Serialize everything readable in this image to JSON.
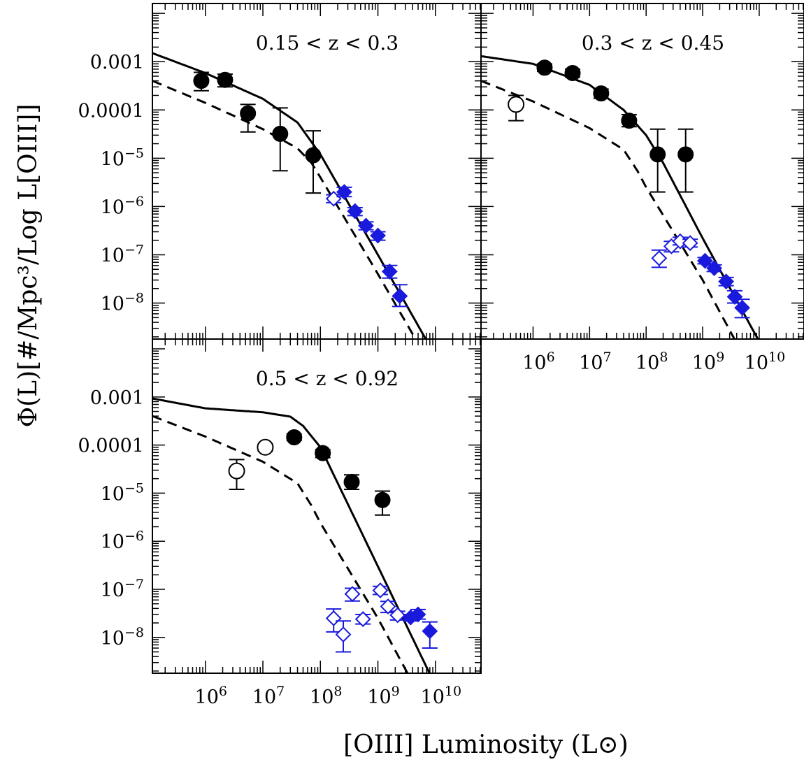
{
  "chart_data": {
    "type": "scatter",
    "xlabel": "[OIII] Luminosity (L⊙)",
    "ylabel": "Φ(L)[#/Mpc³/Log L[OIII]]",
    "xscale": "log",
    "yscale": "log",
    "xlim": [
      120000.0,
      62000000000.0
    ],
    "ylim": [
      1.8e-09,
      0.016
    ],
    "x_ticks": [
      {
        "value": 1000000.0,
        "label": "10",
        "exp": "6"
      },
      {
        "value": 10000000.0,
        "label": "10",
        "exp": "7"
      },
      {
        "value": 100000000.0,
        "label": "10",
        "exp": "8"
      },
      {
        "value": 1000000000.0,
        "label": "10",
        "exp": "9"
      },
      {
        "value": 10000000000.0,
        "label": "10",
        "exp": "10"
      }
    ],
    "y_ticks": [
      {
        "value": 0.001,
        "label": "0.001",
        "exp": ""
      },
      {
        "value": 0.0001,
        "label": "0.0001",
        "exp": ""
      },
      {
        "value": 1e-05,
        "label": "10",
        "exp": "−5"
      },
      {
        "value": 1e-06,
        "label": "10",
        "exp": "−6"
      },
      {
        "value": 1e-07,
        "label": "10",
        "exp": "−7"
      },
      {
        "value": 1e-08,
        "label": "10",
        "exp": "−8"
      }
    ],
    "colors": {
      "black": "#000000",
      "blue": "#1a1adc"
    },
    "panels": [
      {
        "title": "0.15 < z < 0.3",
        "position": "top-left",
        "show_y_ticks": true,
        "show_x_ticks": false,
        "black_filled": [
          {
            "x": 850000.0,
            "y": 0.0004,
            "ylo": 0.00025,
            "yhi": 0.0006
          },
          {
            "x": 2200000.0,
            "y": 0.00042,
            "ylo": 0.0003,
            "yhi": 0.00055
          },
          {
            "x": 5500000.0,
            "y": 8.5e-05,
            "ylo": 3.5e-05,
            "yhi": 0.00013
          },
          {
            "x": 20000000.0,
            "y": 3.2e-05,
            "ylo": 5.5e-06,
            "yhi": 0.00011
          },
          {
            "x": 75000000.0,
            "y": 1.15e-05,
            "ylo": 1.9e-06,
            "yhi": 3.7e-05
          }
        ],
        "black_open": [],
        "blue_filled": [
          {
            "x": 260000000.0,
            "y": 2e-06,
            "ylo": 1.6e-06,
            "yhi": 2.5e-06
          },
          {
            "x": 400000000.0,
            "y": 8e-07,
            "ylo": 6.5e-07,
            "yhi": 9.5e-07
          },
          {
            "x": 620000000.0,
            "y": 4e-07,
            "ylo": 3.3e-07,
            "yhi": 4.8e-07
          },
          {
            "x": 1000000000.0,
            "y": 2.5e-07,
            "ylo": 2e-07,
            "yhi": 3e-07
          },
          {
            "x": 1600000000.0,
            "y": 4.5e-08,
            "ylo": 3.3e-08,
            "yhi": 6e-08
          },
          {
            "x": 2400000000.0,
            "y": 1.4e-08,
            "ylo": 8.5e-09,
            "yhi": 2.4e-08
          }
        ],
        "blue_open": [
          {
            "x": 170000000.0,
            "y": 1.45e-06,
            "ylo": 1.2e-06,
            "yhi": 1.75e-06
          }
        ],
        "solid_curve": [
          [
            120000.0,
            0.0015
          ],
          [
            1000000.0,
            0.00058
          ],
          [
            10000000.0,
            0.00017
          ],
          [
            40000000.0,
            5.5e-05
          ],
          [
            60000000.0,
            2.8e-05
          ],
          [
            100000000.0,
            1.2e-05
          ],
          [
            1000000000.0,
            1e-07
          ],
          [
            10000000000.0,
            8e-10
          ]
        ],
        "dashed_curve": [
          [
            120000.0,
            0.0004
          ],
          [
            1000000.0,
            0.00014
          ],
          [
            10000000.0,
            4e-05
          ],
          [
            40000000.0,
            1.6e-05
          ],
          [
            70000000.0,
            8e-06
          ],
          [
            100000000.0,
            4e-06
          ],
          [
            1000000000.0,
            4e-08
          ],
          [
            10000000000.0,
            3.5e-10
          ]
        ]
      },
      {
        "title": "0.3 < z < 0.45",
        "position": "top-right",
        "show_y_ticks": false,
        "show_x_ticks": true,
        "black_filled": [
          {
            "x": 1600000.0,
            "y": 0.00075,
            "ylo": 0.00063,
            "yhi": 0.0009
          },
          {
            "x": 5000000.0,
            "y": 0.00058,
            "ylo": 0.00048,
            "yhi": 0.0007
          },
          {
            "x": 16000000.0,
            "y": 0.00022,
            "ylo": 0.000175,
            "yhi": 0.00027
          },
          {
            "x": 50000000.0,
            "y": 6e-05,
            "ylo": 4.5e-05,
            "yhi": 8e-05
          },
          {
            "x": 160000000.0,
            "y": 1.2e-05,
            "ylo": 2e-06,
            "yhi": 4e-05
          },
          {
            "x": 500000000.0,
            "y": 1.2e-05,
            "ylo": 2e-06,
            "yhi": 4e-05
          }
        ],
        "black_open": [
          {
            "x": 500000.0,
            "y": 0.00013,
            "ylo": 6e-05,
            "yhi": 0.0002
          }
        ],
        "blue_filled": [
          {
            "x": 1100000000.0,
            "y": 7.5e-08,
            "ylo": 6.5e-08,
            "yhi": 8.8e-08
          },
          {
            "x": 1600000000.0,
            "y": 5.3e-08,
            "ylo": 4.5e-08,
            "yhi": 6.2e-08
          },
          {
            "x": 2600000000.0,
            "y": 2.8e-08,
            "ylo": 2.3e-08,
            "yhi": 3.4e-08
          },
          {
            "x": 3700000000.0,
            "y": 1.35e-08,
            "ylo": 1e-08,
            "yhi": 1.8e-08
          },
          {
            "x": 5000000000.0,
            "y": 8e-09,
            "ylo": 5e-09,
            "yhi": 1.2e-08
          }
        ],
        "blue_open": [
          {
            "x": 170000000.0,
            "y": 8.5e-08,
            "ylo": 5.5e-08,
            "yhi": 1.25e-07
          },
          {
            "x": 280000000.0,
            "y": 1.5e-07,
            "ylo": 1.15e-07,
            "yhi": 1.9e-07
          },
          {
            "x": 400000000.0,
            "y": 1.9e-07,
            "ylo": 1.6e-07,
            "yhi": 2.3e-07
          },
          {
            "x": 600000000.0,
            "y": 1.75e-07,
            "ylo": 1.45e-07,
            "yhi": 2.1e-07
          }
        ],
        "solid_curve": [
          [
            120000.0,
            0.0013
          ],
          [
            1000000.0,
            0.0009
          ],
          [
            10000000.0,
            0.00033
          ],
          [
            40000000.0,
            0.0001
          ],
          [
            100000000.0,
            3e-05
          ],
          [
            200000000.0,
            8e-06
          ],
          [
            1000000000.0,
            2.2e-07
          ],
          [
            10000000000.0,
            1.6e-09
          ]
        ],
        "dashed_curve": [
          [
            120000.0,
            0.0004
          ],
          [
            1000000.0,
            0.00015
          ],
          [
            10000000.0,
            4.2e-05
          ],
          [
            40000000.0,
            1.5e-05
          ],
          [
            70000000.0,
            5.5e-06
          ],
          [
            100000000.0,
            2.5e-06
          ],
          [
            1000000000.0,
            3e-08
          ],
          [
            10000000000.0,
            2e-10
          ]
        ]
      },
      {
        "title": "0.5 < z < 0.92",
        "position": "bottom-left",
        "show_y_ticks": true,
        "show_x_ticks": true,
        "black_filled": [
          {
            "x": 35000000.0,
            "y": 0.000145,
            "ylo": 0.000125,
            "yhi": 0.00017
          },
          {
            "x": 110000000.0,
            "y": 6.8e-05,
            "ylo": 5.5e-05,
            "yhi": 8e-05
          },
          {
            "x": 350000000.0,
            "y": 1.7e-05,
            "ylo": 1.2e-05,
            "yhi": 2.4e-05
          },
          {
            "x": 1200000000.0,
            "y": 7.2e-06,
            "ylo": 3.5e-06,
            "yhi": 1.1e-05
          }
        ],
        "black_open": [
          {
            "x": 3500000.0,
            "y": 2.9e-05,
            "ylo": 1.2e-05,
            "yhi": 5e-05
          },
          {
            "x": 11000000.0,
            "y": 9e-05,
            "ylo": 7.5e-05,
            "yhi": 0.000105
          }
        ],
        "blue_filled": [
          {
            "x": 3700000000.0,
            "y": 2.6e-08,
            "ylo": 2.2e-08,
            "yhi": 3e-08
          },
          {
            "x": 5000000000.0,
            "y": 3e-08,
            "ylo": 2.4e-08,
            "yhi": 3.8e-08
          },
          {
            "x": 8000000000.0,
            "y": 1.35e-08,
            "ylo": 6e-09,
            "yhi": 2.1e-08
          }
        ],
        "blue_open": [
          {
            "x": 170000000.0,
            "y": 2.5e-08,
            "ylo": 1.3e-08,
            "yhi": 3.9e-08
          },
          {
            "x": 250000000.0,
            "y": 1.15e-08,
            "ylo": 5e-09,
            "yhi": 2.2e-08
          },
          {
            "x": 360000000.0,
            "y": 8e-08,
            "ylo": 5.7e-08,
            "yhi": 1.05e-07
          },
          {
            "x": 550000000.0,
            "y": 2.4e-08,
            "ylo": 1.9e-08,
            "yhi": 3e-08
          },
          {
            "x": 1100000000.0,
            "y": 9.5e-08,
            "ylo": 7.8e-08,
            "yhi": 1.15e-07
          },
          {
            "x": 1500000000.0,
            "y": 4.4e-08,
            "ylo": 3.3e-08,
            "yhi": 5.6e-08
          },
          {
            "x": 2200000000.0,
            "y": 2.9e-08,
            "ylo": 2.3e-08,
            "yhi": 3.5e-08
          }
        ],
        "solid_curve": [
          [
            120000.0,
            0.00093
          ],
          [
            1000000.0,
            0.00058
          ],
          [
            10000000.0,
            0.00048
          ],
          [
            30000000.0,
            0.00039
          ],
          [
            50000000.0,
            0.00025
          ],
          [
            100000000.0,
            9e-05
          ],
          [
            1000000000.0,
            3e-07
          ],
          [
            10000000000.0,
            1e-09
          ]
        ],
        "dashed_curve": [
          [
            120000.0,
            0.0004
          ],
          [
            1000000.0,
            0.00015
          ],
          [
            10000000.0,
            4.5e-05
          ],
          [
            40000000.0,
            1.6e-05
          ],
          [
            70000000.0,
            5.5e-06
          ],
          [
            100000000.0,
            2.4e-06
          ],
          [
            1000000000.0,
            2.5e-08
          ],
          [
            10000000000.0,
            1.5e-10
          ]
        ]
      }
    ]
  }
}
